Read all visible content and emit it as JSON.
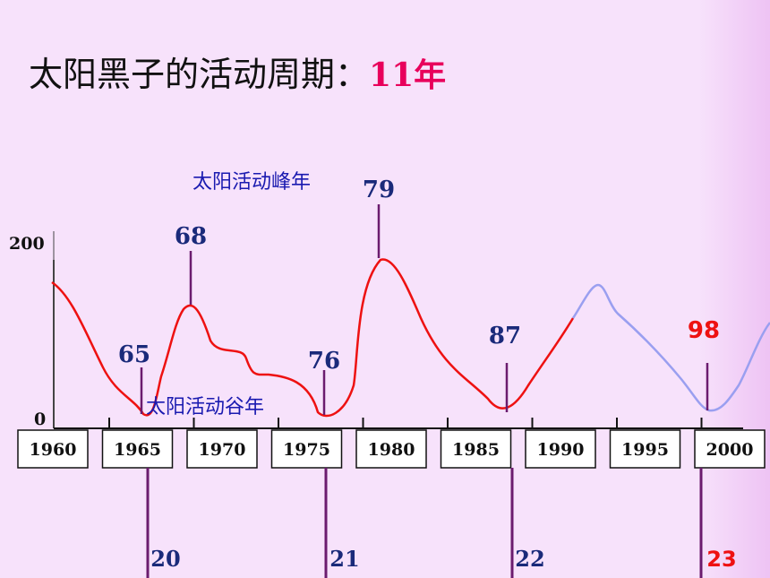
{
  "title": {
    "text": "太阳黑子的活动周期：",
    "period": "11年"
  },
  "labels": {
    "peak_year": "太阳活动峰年",
    "trough_year": "太阳活动谷年"
  },
  "chart_data": {
    "type": "line",
    "x_ticks": [
      "1960",
      "1965",
      "1970",
      "1975",
      "1980",
      "1985",
      "1990",
      "1995",
      "2000"
    ],
    "y_ticks": [
      "200",
      "0"
    ],
    "ylim": [
      0,
      200
    ],
    "peaks": [
      {
        "year": 1968,
        "label": "68",
        "value": 130
      },
      {
        "year": 1979,
        "label": "79",
        "value": 178
      },
      {
        "year": 1990.5,
        "label": "",
        "value": 145
      }
    ],
    "troughs": [
      {
        "year": 1965,
        "label": "65"
      },
      {
        "year": 1976,
        "label": "76"
      },
      {
        "year": 1986.5,
        "label": "87"
      },
      {
        "year": 1998,
        "label": "98"
      }
    ],
    "cycles": [
      {
        "label": "20",
        "year": 1965
      },
      {
        "label": "21",
        "year": 1976
      },
      {
        "label": "22",
        "year": 1986.5
      },
      {
        "label": "23",
        "year": 1998
      }
    ],
    "series": [
      {
        "color": "#ee1111",
        "segment": "observed"
      },
      {
        "color": "#9a9ff0",
        "segment": "projected"
      }
    ]
  }
}
